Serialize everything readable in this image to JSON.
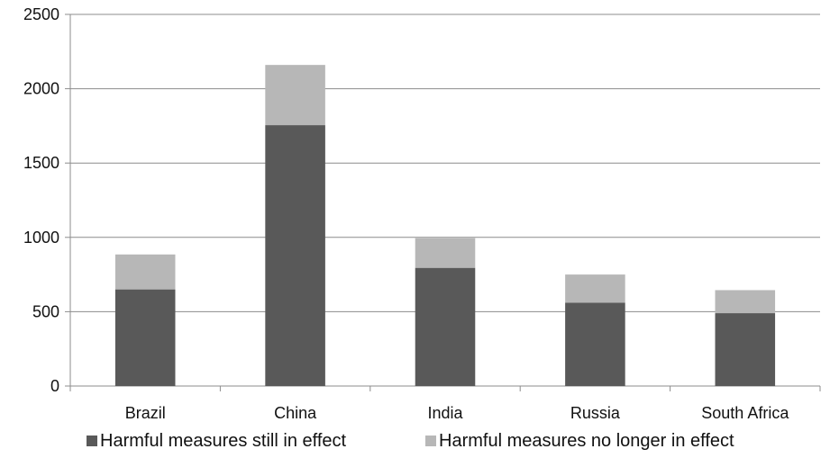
{
  "chart_data": {
    "type": "bar",
    "stacked": true,
    "categories": [
      "Brazil",
      "China",
      "India",
      "Russia",
      "South Africa"
    ],
    "series": [
      {
        "name": "Harmful measures still in effect",
        "color": "#595959",
        "values": [
          650,
          1755,
          795,
          560,
          490
        ]
      },
      {
        "name": "Harmful measures no longer in effect",
        "color": "#b7b7b7",
        "values": [
          235,
          405,
          200,
          190,
          155
        ]
      }
    ],
    "ylim": [
      0,
      2500
    ],
    "yticks": [
      0,
      500,
      1000,
      1500,
      2000,
      2500
    ],
    "grid": true,
    "legend_position": "bottom"
  }
}
